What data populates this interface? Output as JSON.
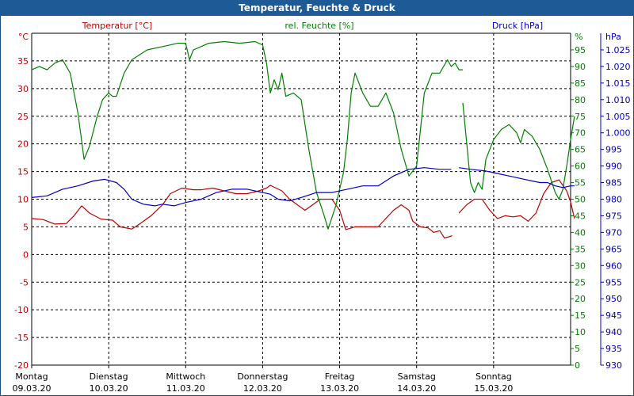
{
  "window_title": "Temperatur, Feuchte & Druck",
  "chart_data": {
    "type": "line",
    "title": "Temperatur, Feuchte & Druck",
    "axes": {
      "temperature": {
        "label": "Temperatur [°C]",
        "unit": "°C",
        "min": -20,
        "max": 40,
        "ticks": [
          -20,
          -15,
          -10,
          -5,
          0,
          5,
          10,
          15,
          20,
          25,
          30,
          35
        ],
        "color": "#c00000"
      },
      "humidity": {
        "label": "rel. Feuchte [%]",
        "unit": "%",
        "min": 0,
        "max": 100,
        "ticks": [
          0,
          5,
          10,
          15,
          20,
          25,
          30,
          35,
          40,
          45,
          50,
          55,
          60,
          65,
          70,
          75,
          80,
          85,
          90,
          95
        ],
        "color": "#008000"
      },
      "pressure": {
        "label": "Druck [hPa]",
        "unit": "hPa",
        "min": 930,
        "max": 1030,
        "ticks": [
          "930",
          "935",
          "940",
          "945",
          "950",
          "955",
          "960",
          "965",
          "970",
          "975",
          "980",
          "985",
          "990",
          "995",
          "1.000",
          "1.005",
          "1.010",
          "1.015",
          "1.020",
          "1.025"
        ],
        "color": "#0000c0"
      }
    },
    "x_days": [
      {
        "day": "Montag",
        "date": "09.03.20"
      },
      {
        "day": "Dienstag",
        "date": "10.03.20"
      },
      {
        "day": "Mittwoch",
        "date": "11.03.20"
      },
      {
        "day": "Donnerstag",
        "date": "12.03.20"
      },
      {
        "day": "Freitag",
        "date": "13.03.20"
      },
      {
        "day": "Samstag",
        "date": "14.03.20"
      },
      {
        "day": "Sonntag",
        "date": "15.03.20"
      }
    ],
    "x_range_days": [
      0,
      7
    ],
    "grid": true,
    "series": [
      {
        "name": "Temperatur [°C]",
        "axis": "temperature",
        "color": "#c00000",
        "segments": [
          [
            [
              0.0,
              6.5
            ],
            [
              0.15,
              6.3
            ],
            [
              0.3,
              5.5
            ],
            [
              0.45,
              5.6
            ],
            [
              0.55,
              7
            ],
            [
              0.65,
              8.8
            ],
            [
              0.75,
              7.5
            ],
            [
              0.9,
              6.4
            ],
            [
              1.05,
              6.2
            ],
            [
              1.15,
              5
            ],
            [
              1.3,
              4.6
            ],
            [
              1.4,
              5.5
            ],
            [
              1.55,
              7
            ],
            [
              1.7,
              9
            ],
            [
              1.8,
              11
            ],
            [
              1.95,
              12
            ],
            [
              2.1,
              11.7
            ],
            [
              2.2,
              11.7
            ],
            [
              2.35,
              12
            ],
            [
              2.5,
              11.5
            ],
            [
              2.65,
              11
            ],
            [
              2.8,
              11
            ],
            [
              2.95,
              11.5
            ],
            [
              3.05,
              12
            ],
            [
              3.1,
              12.5
            ],
            [
              3.25,
              11.5
            ],
            [
              3.35,
              10
            ],
            [
              3.45,
              9
            ],
            [
              3.55,
              8
            ],
            [
              3.65,
              9
            ],
            [
              3.75,
              10
            ],
            [
              3.9,
              10
            ],
            [
              4.0,
              8
            ],
            [
              4.08,
              4.5
            ],
            [
              4.2,
              5
            ],
            [
              4.35,
              5
            ],
            [
              4.5,
              5
            ],
            [
              4.6,
              6.5
            ],
            [
              4.7,
              8
            ],
            [
              4.8,
              9
            ],
            [
              4.9,
              8
            ],
            [
              4.95,
              6
            ],
            [
              5.05,
              5
            ],
            [
              5.15,
              4.8
            ],
            [
              5.22,
              4
            ],
            [
              5.3,
              4.3
            ],
            [
              5.36,
              3
            ],
            [
              5.42,
              3.2
            ],
            [
              5.46,
              3.4
            ]
          ],
          [
            [
              5.55,
              7.5
            ],
            [
              5.65,
              9
            ],
            [
              5.75,
              10
            ],
            [
              5.85,
              10
            ],
            [
              5.95,
              8
            ],
            [
              6.05,
              6.5
            ],
            [
              6.15,
              7
            ],
            [
              6.25,
              6.8
            ],
            [
              6.35,
              7
            ],
            [
              6.45,
              6
            ],
            [
              6.55,
              7.5
            ],
            [
              6.65,
              11
            ],
            [
              6.75,
              13
            ],
            [
              6.85,
              13.5
            ],
            [
              6.95,
              11.5
            ],
            [
              7.0,
              9.5
            ],
            [
              7.05,
              6.5
            ]
          ]
        ]
      },
      {
        "name": "rel. Feuchte [%]",
        "axis": "humidity",
        "color": "#008000",
        "segments": [
          [
            [
              0.0,
              89
            ],
            [
              0.1,
              90
            ],
            [
              0.2,
              89
            ],
            [
              0.3,
              91
            ],
            [
              0.4,
              92
            ],
            [
              0.5,
              88
            ],
            [
              0.6,
              76
            ],
            [
              0.68,
              62
            ],
            [
              0.75,
              66
            ],
            [
              0.85,
              75
            ],
            [
              0.92,
              80
            ],
            [
              1.0,
              82
            ],
            [
              1.05,
              81
            ],
            [
              1.1,
              81
            ],
            [
              1.2,
              88
            ],
            [
              1.3,
              92
            ],
            [
              1.5,
              95
            ],
            [
              1.7,
              96
            ],
            [
              1.9,
              97
            ],
            [
              2.0,
              97
            ],
            [
              2.05,
              92
            ],
            [
              2.1,
              95
            ],
            [
              2.3,
              97
            ],
            [
              2.5,
              97.5
            ],
            [
              2.7,
              97
            ],
            [
              2.9,
              97.5
            ],
            [
              3.0,
              96.5
            ],
            [
              3.05,
              91
            ],
            [
              3.1,
              82
            ],
            [
              3.15,
              86
            ],
            [
              3.2,
              83
            ],
            [
              3.25,
              88
            ],
            [
              3.3,
              81
            ],
            [
              3.4,
              82
            ],
            [
              3.5,
              80
            ],
            [
              3.6,
              65
            ],
            [
              3.7,
              52
            ],
            [
              3.8,
              45
            ],
            [
              3.85,
              41
            ],
            [
              3.95,
              48
            ],
            [
              4.05,
              58
            ],
            [
              4.1,
              68
            ],
            [
              4.15,
              82
            ],
            [
              4.2,
              88
            ],
            [
              4.3,
              82
            ],
            [
              4.4,
              78
            ],
            [
              4.5,
              78
            ],
            [
              4.6,
              82
            ],
            [
              4.7,
              76
            ],
            [
              4.8,
              65
            ],
            [
              4.9,
              57
            ],
            [
              5.0,
              60
            ],
            [
              5.1,
              82
            ],
            [
              5.2,
              88
            ],
            [
              5.3,
              88
            ],
            [
              5.4,
              92
            ],
            [
              5.45,
              90
            ],
            [
              5.5,
              91
            ],
            [
              5.55,
              89
            ],
            [
              5.6,
              89
            ]
          ],
          [
            [
              5.6,
              79
            ],
            [
              5.7,
              55
            ],
            [
              5.75,
              52
            ],
            [
              5.8,
              55
            ],
            [
              5.85,
              53
            ],
            [
              5.9,
              62
            ],
            [
              6.0,
              68
            ],
            [
              6.1,
              71
            ],
            [
              6.2,
              72.5
            ],
            [
              6.3,
              70
            ],
            [
              6.35,
              67
            ],
            [
              6.4,
              71
            ],
            [
              6.5,
              69
            ],
            [
              6.6,
              65
            ],
            [
              6.7,
              59
            ],
            [
              6.8,
              52
            ],
            [
              6.85,
              50
            ],
            [
              6.9,
              53
            ],
            [
              6.95,
              60
            ],
            [
              7.0,
              68
            ],
            [
              7.05,
              75
            ]
          ]
        ]
      },
      {
        "name": "Druck [hPa]",
        "axis": "pressure",
        "color": "#0000c0",
        "segments": [
          [
            [
              0.0,
              980.5
            ],
            [
              0.2,
              981
            ],
            [
              0.4,
              983
            ],
            [
              0.6,
              984
            ],
            [
              0.8,
              985.5
            ],
            [
              0.95,
              986
            ],
            [
              1.1,
              985
            ],
            [
              1.2,
              983
            ],
            [
              1.3,
              980
            ],
            [
              1.45,
              978.5
            ],
            [
              1.6,
              978
            ],
            [
              1.7,
              978.5
            ],
            [
              1.85,
              978
            ],
            [
              2.0,
              979
            ],
            [
              2.2,
              980
            ],
            [
              2.4,
              982
            ],
            [
              2.6,
              983
            ],
            [
              2.8,
              983
            ],
            [
              3.0,
              982
            ],
            [
              3.1,
              981.5
            ],
            [
              3.2,
              980
            ],
            [
              3.35,
              979.5
            ],
            [
              3.5,
              980.5
            ],
            [
              3.7,
              982
            ],
            [
              3.9,
              982
            ],
            [
              4.1,
              983
            ],
            [
              4.3,
              984
            ],
            [
              4.5,
              984
            ],
            [
              4.7,
              987
            ],
            [
              4.9,
              989
            ],
            [
              5.1,
              989.5
            ],
            [
              5.3,
              989
            ],
            [
              5.45,
              989
            ]
          ],
          [
            [
              5.55,
              989.5
            ],
            [
              5.7,
              989
            ],
            [
              5.9,
              988.5
            ],
            [
              6.0,
              988
            ],
            [
              6.2,
              987
            ],
            [
              6.3,
              986.5
            ],
            [
              6.4,
              986
            ],
            [
              6.5,
              985.5
            ],
            [
              6.6,
              985
            ],
            [
              6.7,
              985
            ],
            [
              6.8,
              984
            ],
            [
              6.9,
              983.5
            ],
            [
              7.0,
              984
            ],
            [
              7.05,
              984
            ]
          ]
        ]
      }
    ]
  }
}
